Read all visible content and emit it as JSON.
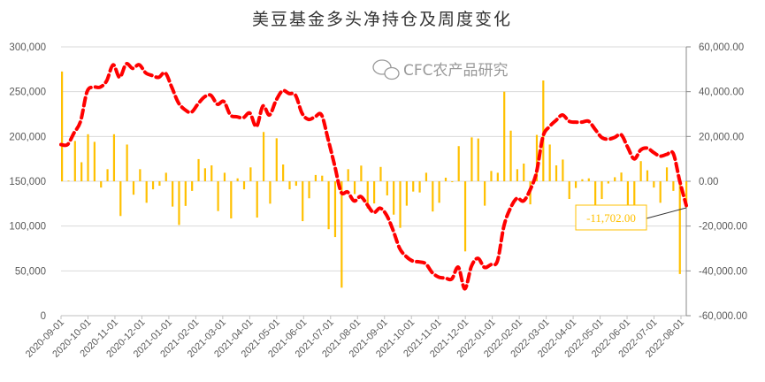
{
  "chart_data": {
    "type": "bar+line",
    "title": "美豆基金多头净持仓及周度变化",
    "xlabel": "",
    "ylabel_left": "",
    "ylabel_right": "",
    "ylim_left": [
      0,
      300000
    ],
    "ylim_right": [
      -60000,
      60000
    ],
    "left_ticks": [
      "0",
      "50,000",
      "100,000",
      "150,000",
      "200,000",
      "250,000",
      "300,000"
    ],
    "left_tick_values": [
      0,
      50000,
      100000,
      150000,
      200000,
      250000,
      300000
    ],
    "right_ticks": [
      "-60,000.00",
      "-40,000.00",
      "-20,000.00",
      "0.00",
      "20,000.00",
      "40,000.00",
      "60,000.00"
    ],
    "right_tick_values": [
      -60000,
      -40000,
      -20000,
      0,
      20000,
      40000,
      60000
    ],
    "x_tick_labels": [
      "2020-09-01",
      "2020-10-01",
      "2020-11-01",
      "2020-12-01",
      "2021-01-01",
      "2021-02-01",
      "2021-03-01",
      "2021-04-01",
      "2021-05-01",
      "2021-06-01",
      "2021-07-01",
      "2021-08-01",
      "2021-09-01",
      "2021-10-01",
      "2021-11-01",
      "2021-12-01",
      "2022-01-01",
      "2022-02-01",
      "2022-03-01",
      "2022-04-01",
      "2022-05-01",
      "2022-06-01",
      "2022-07-01",
      "2022-08-01"
    ],
    "grid": true,
    "legend": "none",
    "colors": {
      "line": "#ff0000",
      "bars": "#ffc000",
      "grid": "#d9d9d9"
    },
    "series": [
      {
        "type": "line",
        "axis": "left",
        "style": "dashed",
        "values": [
          191000,
          191000,
          204000,
          217000,
          250000,
          255000,
          255000,
          262000,
          280000,
          266000,
          281000,
          276000,
          280000,
          271000,
          268000,
          266000,
          271000,
          255000,
          238000,
          230000,
          227000,
          236000,
          244000,
          246000,
          236000,
          239000,
          224000,
          222000,
          221000,
          226000,
          211000,
          234000,
          224000,
          240000,
          251000,
          248000,
          246000,
          226000,
          219000,
          222000,
          224000,
          197000,
          168000,
          138000,
          138000,
          128000,
          133000,
          124000,
          115000,
          120000,
          112000,
          95000,
          75000,
          66000,
          61000,
          60000,
          58000,
          48000,
          43000,
          42000,
          41000,
          54000,
          30000,
          55000,
          64000,
          54000,
          57000,
          61000,
          100000,
          120000,
          131000,
          128000,
          140000,
          160000,
          200000,
          211000,
          218000,
          224000,
          217000,
          216000,
          216000,
          217000,
          208000,
          199000,
          197000,
          199000,
          202000,
          188000,
          175000,
          185000,
          187000,
          182000,
          178000,
          180000,
          181000,
          150000,
          123000
        ]
      },
      {
        "type": "bar",
        "axis": "right",
        "values": [
          49000,
          300,
          18000,
          8500,
          21000,
          17600,
          -2800,
          5400,
          21000,
          -15500,
          16400,
          -6000,
          5400,
          -9600,
          -3600,
          -2000,
          3800,
          -11300,
          -19500,
          -11000,
          -4300,
          9900,
          5800,
          7100,
          -13300,
          3800,
          -16600,
          1300,
          -3600,
          6200,
          -16200,
          22000,
          -10000,
          19200,
          7500,
          -3600,
          -2000,
          -17800,
          -7600,
          2800,
          2500,
          -21400,
          -24900,
          -47500,
          5400,
          -5700,
          7000,
          -12200,
          -9900,
          6400,
          -6300,
          -14900,
          -20800,
          -10900,
          -4600,
          -5000,
          3800,
          -13500,
          -9600,
          1600,
          -400,
          15700,
          -31300,
          19600,
          19100,
          -10900,
          4600,
          3800,
          40000,
          22600,
          5400,
          7900,
          -10300,
          20700,
          45000,
          16400,
          7100,
          9700,
          -7900,
          -3000,
          900,
          1300,
          -12500,
          -7900,
          -1000,
          1800,
          3900,
          -13500,
          -13500,
          9000,
          4900,
          -2800,
          -9600,
          6200,
          -4300,
          -41400,
          -11702
        ]
      }
    ],
    "annotations": [
      {
        "text": "-11,702.00",
        "target": "last-bar"
      }
    ]
  },
  "watermark": {
    "text": "CFC农产品研究",
    "icon": "wechat-icon"
  }
}
